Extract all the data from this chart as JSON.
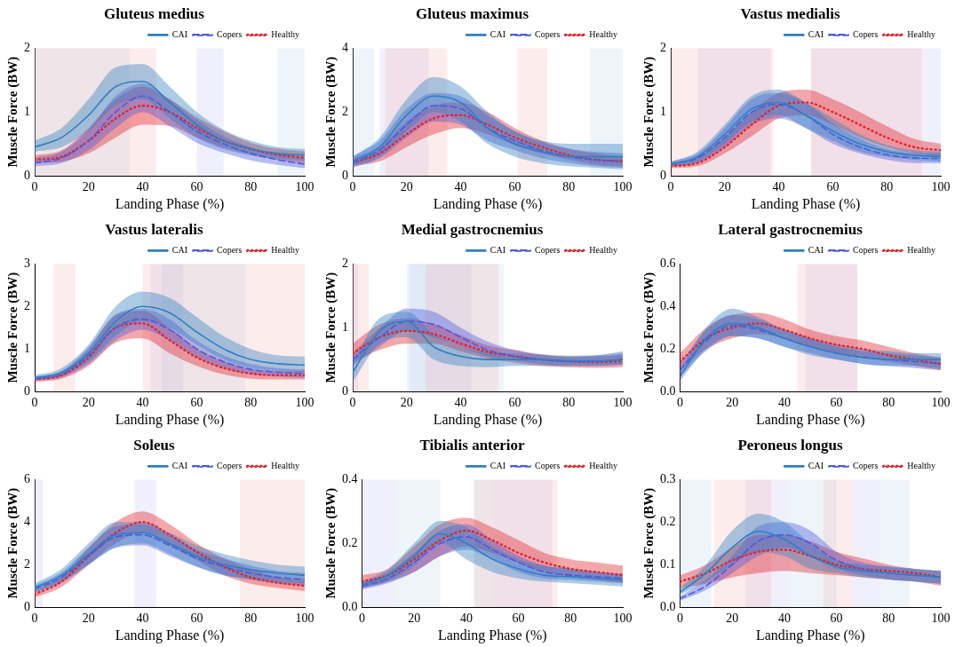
{
  "chart_data": [
    {
      "type": "line",
      "title": "Gluteus medius",
      "xlabel": "Landing Phase (%)",
      "ylabel": "Muscle Force (BW)",
      "x": [
        0,
        10,
        20,
        30,
        40,
        50,
        60,
        70,
        80,
        90,
        100
      ],
      "xlim": [
        0,
        100
      ],
      "xticks": [
        0,
        20,
        40,
        60,
        80,
        100
      ],
      "ylim": [
        0,
        2
      ],
      "yticks": [
        0,
        1,
        2
      ],
      "legend": "top right",
      "marker": "none",
      "grid": false,
      "series": [
        {
          "name": "CAI",
          "color": "#2f7fc1",
          "line_style": "solid",
          "values": [
            0.45,
            0.6,
            0.95,
            1.4,
            1.48,
            1.15,
            0.8,
            0.55,
            0.42,
            0.35,
            0.32
          ],
          "lower": [
            0.38,
            0.45,
            0.7,
            1.1,
            1.2,
            0.9,
            0.6,
            0.42,
            0.32,
            0.27,
            0.25
          ],
          "upper": [
            0.55,
            0.75,
            1.2,
            1.7,
            1.75,
            1.4,
            1.0,
            0.72,
            0.55,
            0.45,
            0.42
          ]
        },
        {
          "name": "Copers",
          "color": "#4b5bdc",
          "line_style": "dashed",
          "values": [
            0.2,
            0.28,
            0.55,
            1.0,
            1.25,
            1.0,
            0.7,
            0.5,
            0.35,
            0.25,
            0.18
          ],
          "lower": [
            0.15,
            0.2,
            0.4,
            0.75,
            1.0,
            0.78,
            0.52,
            0.36,
            0.24,
            0.17,
            0.12
          ],
          "upper": [
            0.28,
            0.38,
            0.72,
            1.25,
            1.45,
            1.2,
            0.88,
            0.62,
            0.45,
            0.34,
            0.28
          ]
        },
        {
          "name": "Healthy",
          "color": "#e3242b",
          "line_style": "dotted",
          "values": [
            0.25,
            0.3,
            0.55,
            0.9,
            1.1,
            1.0,
            0.75,
            0.55,
            0.42,
            0.33,
            0.28
          ],
          "lower": [
            0.2,
            0.22,
            0.35,
            0.6,
            0.8,
            0.78,
            0.6,
            0.44,
            0.33,
            0.25,
            0.2
          ],
          "upper": [
            0.32,
            0.4,
            0.75,
            1.2,
            1.4,
            1.2,
            0.92,
            0.7,
            0.52,
            0.42,
            0.38
          ]
        }
      ],
      "bands": [
        {
          "axis": "x",
          "from": 0,
          "to": 35,
          "color": "#a8cbe8"
        },
        {
          "axis": "x",
          "from": 90,
          "to": 100,
          "color": "#a8cbe8"
        },
        {
          "axis": "x",
          "from": 60,
          "to": 70,
          "color": "#b4b4f2"
        },
        {
          "axis": "x",
          "from": 0,
          "to": 45,
          "color": "#f4a0a0"
        }
      ]
    },
    {
      "type": "line",
      "title": "Gluteus maximus",
      "xlabel": "Landing Phase (%)",
      "ylabel": "Muscle Force (BW)",
      "x": [
        0,
        10,
        20,
        30,
        40,
        50,
        60,
        70,
        80,
        90,
        100
      ],
      "xlim": [
        0,
        100
      ],
      "xticks": [
        0,
        20,
        40,
        60,
        80,
        100
      ],
      "ylim": [
        0,
        4
      ],
      "yticks": [
        0,
        2,
        4
      ],
      "legend": "top right",
      "marker": "none",
      "grid": false,
      "series": [
        {
          "name": "CAI",
          "color": "#2f7fc1",
          "line_style": "solid",
          "values": [
            0.45,
            0.9,
            1.9,
            2.5,
            2.3,
            1.5,
            1.0,
            0.75,
            0.6,
            0.6,
            0.6
          ],
          "lower": [
            0.3,
            0.6,
            1.4,
            2.0,
            1.7,
            1.0,
            0.6,
            0.4,
            0.3,
            0.25,
            0.2
          ],
          "upper": [
            0.6,
            1.2,
            2.4,
            3.1,
            2.8,
            2.0,
            1.4,
            1.1,
            1.0,
            1.0,
            1.0
          ]
        },
        {
          "name": "Copers",
          "color": "#4b5bdc",
          "line_style": "dashed",
          "values": [
            0.4,
            0.8,
            1.6,
            2.2,
            2.1,
            1.5,
            1.1,
            0.8,
            0.6,
            0.5,
            0.45
          ],
          "lower": [
            0.25,
            0.55,
            1.2,
            1.7,
            1.6,
            1.1,
            0.8,
            0.55,
            0.4,
            0.3,
            0.25
          ],
          "upper": [
            0.6,
            1.1,
            2.1,
            2.6,
            2.5,
            1.9,
            1.4,
            1.05,
            0.85,
            0.75,
            0.7
          ]
        },
        {
          "name": "Healthy",
          "color": "#e3242b",
          "line_style": "dotted",
          "values": [
            0.4,
            0.7,
            1.3,
            1.8,
            1.9,
            1.6,
            1.2,
            0.9,
            0.65,
            0.5,
            0.45
          ],
          "lower": [
            0.3,
            0.45,
            0.9,
            1.3,
            1.5,
            1.3,
            0.95,
            0.7,
            0.5,
            0.35,
            0.3
          ],
          "upper": [
            0.55,
            0.9,
            1.7,
            2.2,
            2.3,
            2.0,
            1.5,
            1.1,
            0.85,
            0.7,
            0.6
          ]
        }
      ],
      "bands": [
        {
          "axis": "x",
          "from": 0,
          "to": 8,
          "color": "#a8cbe8"
        },
        {
          "axis": "x",
          "from": 88,
          "to": 100,
          "color": "#a8cbe8"
        },
        {
          "axis": "x",
          "from": 10,
          "to": 28,
          "color": "#b4b4f2"
        },
        {
          "axis": "x",
          "from": 12,
          "to": 35,
          "color": "#f4a0a0"
        },
        {
          "axis": "x",
          "from": 61,
          "to": 72,
          "color": "#f4a0a0"
        }
      ]
    },
    {
      "type": "line",
      "title": "Vastus medialis",
      "xlabel": "Landing Phase (%)",
      "ylabel": "Muscle Force (BW)",
      "x": [
        0,
        10,
        20,
        30,
        40,
        50,
        60,
        70,
        80,
        90,
        100
      ],
      "xlim": [
        0,
        100
      ],
      "xticks": [
        0,
        20,
        40,
        60,
        80,
        100
      ],
      "ylim": [
        0,
        2
      ],
      "yticks": [
        0,
        1,
        2
      ],
      "legend": "top right",
      "marker": "none",
      "grid": false,
      "series": [
        {
          "name": "CAI",
          "color": "#2f7fc1",
          "line_style": "solid",
          "values": [
            0.18,
            0.3,
            0.65,
            1.05,
            1.15,
            0.95,
            0.7,
            0.5,
            0.38,
            0.32,
            0.3
          ],
          "lower": [
            0.15,
            0.22,
            0.5,
            0.85,
            0.95,
            0.75,
            0.55,
            0.38,
            0.3,
            0.25,
            0.22
          ],
          "upper": [
            0.22,
            0.38,
            0.8,
            1.25,
            1.35,
            1.15,
            0.9,
            0.65,
            0.48,
            0.4,
            0.38
          ]
        },
        {
          "name": "Copers",
          "color": "#4b5bdc",
          "line_style": "dashed",
          "values": [
            0.18,
            0.28,
            0.6,
            1.0,
            1.12,
            0.95,
            0.65,
            0.45,
            0.33,
            0.28,
            0.27
          ],
          "lower": [
            0.14,
            0.2,
            0.45,
            0.8,
            0.9,
            0.75,
            0.5,
            0.35,
            0.25,
            0.2,
            0.2
          ],
          "upper": [
            0.22,
            0.35,
            0.75,
            1.2,
            1.3,
            1.15,
            0.82,
            0.58,
            0.42,
            0.36,
            0.35
          ]
        },
        {
          "name": "Healthy",
          "color": "#e3242b",
          "line_style": "dotted",
          "values": [
            0.15,
            0.2,
            0.45,
            0.8,
            1.1,
            1.15,
            1.0,
            0.8,
            0.6,
            0.45,
            0.4
          ],
          "lower": [
            0.12,
            0.15,
            0.35,
            0.62,
            0.9,
            0.95,
            0.8,
            0.6,
            0.45,
            0.35,
            0.3
          ],
          "upper": [
            0.2,
            0.28,
            0.6,
            1.0,
            1.3,
            1.35,
            1.2,
            1.0,
            0.78,
            0.58,
            0.5
          ]
        }
      ],
      "bands": [
        {
          "axis": "x",
          "from": 10,
          "to": 37,
          "color": "#b4b4f2"
        },
        {
          "axis": "x",
          "from": 52,
          "to": 100,
          "color": "#b4b4f2"
        },
        {
          "axis": "x",
          "from": 0,
          "to": 38,
          "color": "#f4a0a0"
        },
        {
          "axis": "x",
          "from": 52,
          "to": 93,
          "color": "#f4a0a0"
        }
      ]
    },
    {
      "type": "line",
      "title": "Vastus lateralis",
      "xlabel": "Landing Phase (%)",
      "ylabel": "Muscle Force (BW)",
      "x": [
        0,
        10,
        20,
        30,
        40,
        50,
        60,
        70,
        80,
        90,
        100
      ],
      "xlim": [
        0,
        100
      ],
      "xticks": [
        0,
        20,
        40,
        60,
        80,
        100
      ],
      "ylim": [
        0,
        3
      ],
      "yticks": [
        0,
        1,
        2,
        3
      ],
      "legend": "top right",
      "marker": "none",
      "grid": false,
      "series": [
        {
          "name": "CAI",
          "color": "#2f7fc1",
          "line_style": "solid",
          "values": [
            0.32,
            0.45,
            0.9,
            1.65,
            2.0,
            1.85,
            1.4,
            1.0,
            0.75,
            0.65,
            0.62
          ],
          "lower": [
            0.27,
            0.38,
            0.7,
            1.3,
            1.65,
            1.5,
            1.1,
            0.75,
            0.55,
            0.48,
            0.45
          ],
          "upper": [
            0.38,
            0.55,
            1.1,
            2.0,
            2.35,
            2.2,
            1.75,
            1.3,
            1.0,
            0.85,
            0.82
          ]
        },
        {
          "name": "Copers",
          "color": "#4b5bdc",
          "line_style": "dashed",
          "values": [
            0.3,
            0.4,
            0.85,
            1.5,
            1.7,
            1.45,
            1.0,
            0.7,
            0.52,
            0.45,
            0.42
          ],
          "lower": [
            0.25,
            0.33,
            0.65,
            1.2,
            1.45,
            1.2,
            0.8,
            0.55,
            0.4,
            0.35,
            0.32
          ],
          "upper": [
            0.35,
            0.48,
            1.05,
            1.8,
            1.95,
            1.7,
            1.2,
            0.85,
            0.65,
            0.55,
            0.52
          ]
        },
        {
          "name": "Healthy",
          "color": "#e3242b",
          "line_style": "dotted",
          "values": [
            0.28,
            0.38,
            0.8,
            1.5,
            1.6,
            1.2,
            0.8,
            0.55,
            0.42,
            0.38,
            0.38
          ],
          "lower": [
            0.22,
            0.3,
            0.6,
            1.15,
            1.25,
            0.9,
            0.6,
            0.4,
            0.3,
            0.28,
            0.28
          ],
          "upper": [
            0.33,
            0.45,
            1.0,
            1.8,
            1.9,
            1.5,
            1.0,
            0.7,
            0.52,
            0.48,
            0.48
          ]
        }
      ],
      "bands": [
        {
          "axis": "x",
          "from": 43,
          "to": 55,
          "color": "#b4b4f2"
        },
        {
          "axis": "x",
          "from": 47,
          "to": 78,
          "color": "#a8cbe8"
        },
        {
          "axis": "x",
          "from": 7,
          "to": 15,
          "color": "#f4a0a0"
        },
        {
          "axis": "x",
          "from": 40,
          "to": 100,
          "color": "#f4a0a0"
        }
      ]
    },
    {
      "type": "line",
      "title": "Medial gastrocnemius",
      "xlabel": "Landing Phase (%)",
      "ylabel": "Muscle Force (BW)",
      "x": [
        0,
        10,
        20,
        30,
        40,
        50,
        60,
        70,
        80,
        90,
        100
      ],
      "xlim": [
        0,
        100
      ],
      "xticks": [
        0,
        20,
        40,
        60,
        80,
        100
      ],
      "ylim": [
        0,
        2
      ],
      "yticks": [
        0,
        1,
        2
      ],
      "legend": "top right",
      "marker": "none",
      "grid": false,
      "series": [
        {
          "name": "CAI",
          "color": "#2f7fc1",
          "line_style": "solid",
          "values": [
            0.3,
            0.95,
            1.1,
            0.7,
            0.55,
            0.5,
            0.5,
            0.5,
            0.48,
            0.48,
            0.5
          ],
          "lower": [
            0.15,
            0.75,
            0.85,
            0.5,
            0.4,
            0.38,
            0.4,
            0.4,
            0.4,
            0.4,
            0.42
          ],
          "upper": [
            0.45,
            1.15,
            1.25,
            0.9,
            0.7,
            0.62,
            0.6,
            0.58,
            0.56,
            0.57,
            0.6
          ]
        },
        {
          "name": "Copers",
          "color": "#4b5bdc",
          "line_style": "dashed",
          "values": [
            0.5,
            0.85,
            1.1,
            1.05,
            0.85,
            0.65,
            0.55,
            0.5,
            0.47,
            0.47,
            0.5
          ],
          "lower": [
            0.4,
            0.7,
            0.95,
            0.85,
            0.7,
            0.55,
            0.48,
            0.43,
            0.4,
            0.4,
            0.42
          ],
          "upper": [
            0.6,
            1.0,
            1.3,
            1.25,
            1.0,
            0.78,
            0.65,
            0.57,
            0.54,
            0.56,
            0.63
          ]
        },
        {
          "name": "Healthy",
          "color": "#e3242b",
          "line_style": "dotted",
          "values": [
            0.6,
            0.85,
            0.95,
            0.9,
            0.75,
            0.62,
            0.55,
            0.5,
            0.47,
            0.46,
            0.47
          ],
          "lower": [
            0.45,
            0.65,
            0.75,
            0.75,
            0.63,
            0.52,
            0.45,
            0.4,
            0.38,
            0.37,
            0.38
          ],
          "upper": [
            0.75,
            1.05,
            1.15,
            1.05,
            0.88,
            0.72,
            0.65,
            0.58,
            0.55,
            0.55,
            0.57
          ]
        }
      ],
      "bands": [
        {
          "axis": "x",
          "from": 0,
          "to": 2,
          "color": "#b4b4f2"
        },
        {
          "axis": "x",
          "from": 21,
          "to": 44,
          "color": "#b4b4f2"
        },
        {
          "axis": "x",
          "from": 20,
          "to": 56,
          "color": "#a8cbe8"
        },
        {
          "axis": "x",
          "from": 0,
          "to": 6,
          "color": "#f4a0a0"
        },
        {
          "axis": "x",
          "from": 27,
          "to": 54,
          "color": "#f4a0a0"
        }
      ]
    },
    {
      "type": "line",
      "title": "Lateral gastrocnemius",
      "xlabel": "Landing Phase (%)",
      "ylabel": "Muscle Force (BW)",
      "x": [
        0,
        10,
        20,
        30,
        40,
        50,
        60,
        70,
        80,
        90,
        100
      ],
      "xlim": [
        0,
        100
      ],
      "xticks": [
        0,
        20,
        40,
        60,
        80,
        100
      ],
      "ylim": [
        0,
        0.6
      ],
      "yticks": [
        {
          "value": 0,
          "label": "0.0"
        },
        {
          "value": 0.2,
          "label": "0.2"
        },
        {
          "value": 0.4,
          "label": "0.4"
        },
        {
          "value": 0.6,
          "label": "0.6"
        }
      ],
      "legend": "top right",
      "marker": "none",
      "grid": false,
      "series": [
        {
          "name": "CAI",
          "color": "#2f7fc1",
          "line_style": "solid",
          "values": [
            0.07,
            0.25,
            0.32,
            0.3,
            0.25,
            0.21,
            0.18,
            0.16,
            0.15,
            0.15,
            0.15
          ],
          "lower": [
            0.05,
            0.2,
            0.26,
            0.25,
            0.21,
            0.17,
            0.15,
            0.13,
            0.12,
            0.12,
            0.11
          ],
          "upper": [
            0.1,
            0.3,
            0.39,
            0.35,
            0.29,
            0.25,
            0.22,
            0.2,
            0.19,
            0.18,
            0.18
          ]
        },
        {
          "name": "Copers",
          "color": "#4b5bdc",
          "line_style": "dashed",
          "values": [
            0.1,
            0.24,
            0.31,
            0.29,
            0.25,
            0.21,
            0.18,
            0.16,
            0.15,
            0.14,
            0.13
          ],
          "lower": [
            0.07,
            0.19,
            0.26,
            0.25,
            0.21,
            0.18,
            0.15,
            0.13,
            0.12,
            0.11,
            0.1
          ],
          "upper": [
            0.13,
            0.29,
            0.36,
            0.34,
            0.29,
            0.25,
            0.21,
            0.19,
            0.18,
            0.17,
            0.16
          ]
        },
        {
          "name": "Healthy",
          "color": "#e3242b",
          "line_style": "dotted",
          "values": [
            0.14,
            0.25,
            0.3,
            0.32,
            0.29,
            0.25,
            0.22,
            0.2,
            0.17,
            0.15,
            0.13
          ],
          "lower": [
            0.1,
            0.2,
            0.25,
            0.27,
            0.25,
            0.21,
            0.18,
            0.16,
            0.14,
            0.12,
            0.1
          ],
          "upper": [
            0.18,
            0.3,
            0.36,
            0.37,
            0.34,
            0.29,
            0.26,
            0.24,
            0.21,
            0.18,
            0.16
          ]
        }
      ],
      "bands": [
        {
          "axis": "x",
          "from": 48,
          "to": 68,
          "color": "#b4b4f2"
        },
        {
          "axis": "x",
          "from": 0,
          "to": 1,
          "color": "#f4a0a0"
        },
        {
          "axis": "x",
          "from": 45,
          "to": 68,
          "color": "#f4a0a0"
        }
      ]
    },
    {
      "type": "line",
      "title": "Soleus",
      "xlabel": "Landing Phase (%)",
      "ylabel": "Muscle Force (BW)",
      "x": [
        0,
        10,
        20,
        30,
        40,
        50,
        60,
        70,
        80,
        90,
        100
      ],
      "xlim": [
        0,
        100
      ],
      "xticks": [
        0,
        20,
        40,
        60,
        80,
        100
      ],
      "ylim": [
        0,
        6
      ],
      "yticks": [
        0,
        2,
        4,
        6
      ],
      "legend": "top right",
      "marker": "none",
      "grid": false,
      "series": [
        {
          "name": "CAI",
          "color": "#2f7fc1",
          "line_style": "solid",
          "values": [
            0.9,
            1.5,
            2.5,
            3.4,
            3.5,
            3.0,
            2.4,
            2.0,
            1.75,
            1.6,
            1.5
          ],
          "lower": [
            0.7,
            1.2,
            2.0,
            2.8,
            3.0,
            2.5,
            1.9,
            1.5,
            1.3,
            1.2,
            1.1
          ],
          "upper": [
            1.1,
            1.8,
            3.0,
            4.0,
            4.0,
            3.5,
            2.9,
            2.5,
            2.2,
            2.0,
            1.9
          ]
        },
        {
          "name": "Copers",
          "color": "#4b5bdc",
          "line_style": "dashed",
          "values": [
            0.85,
            1.4,
            2.4,
            3.3,
            3.4,
            2.9,
            2.3,
            1.9,
            1.6,
            1.4,
            1.3
          ],
          "lower": [
            0.7,
            1.15,
            2.0,
            2.8,
            2.9,
            2.4,
            1.9,
            1.5,
            1.3,
            1.1,
            1.0
          ],
          "upper": [
            1.0,
            1.65,
            2.8,
            3.8,
            3.9,
            3.4,
            2.7,
            2.3,
            1.95,
            1.7,
            1.6
          ]
        },
        {
          "name": "Healthy",
          "color": "#e3242b",
          "line_style": "dotted",
          "values": [
            0.6,
            1.2,
            2.4,
            3.5,
            4.0,
            3.4,
            2.6,
            1.9,
            1.4,
            1.15,
            1.0
          ],
          "lower": [
            0.45,
            0.95,
            2.0,
            3.0,
            3.5,
            2.9,
            2.2,
            1.5,
            1.1,
            0.9,
            0.75
          ],
          "upper": [
            0.75,
            1.45,
            2.8,
            4.0,
            4.5,
            3.9,
            3.0,
            2.3,
            1.8,
            1.4,
            1.25
          ]
        }
      ],
      "bands": [
        {
          "axis": "x",
          "from": 0,
          "to": 3,
          "color": "#b4b4f2"
        },
        {
          "axis": "x",
          "from": 37,
          "to": 45,
          "color": "#b4b4f2"
        },
        {
          "axis": "x",
          "from": 76,
          "to": 100,
          "color": "#f4a0a0"
        }
      ]
    },
    {
      "type": "line",
      "title": "Tibialis anterior",
      "xlabel": "Landing Phase (%)",
      "ylabel": "Muscle Force (BW)",
      "x": [
        0,
        10,
        20,
        30,
        40,
        50,
        60,
        70,
        80,
        90,
        100
      ],
      "xlim": [
        0,
        100
      ],
      "xticks": [
        0,
        20,
        40,
        60,
        80,
        100
      ],
      "ylim": [
        0,
        0.4
      ],
      "yticks": [
        {
          "value": 0,
          "label": "0.0"
        },
        {
          "value": 0.2,
          "label": "0.2"
        },
        {
          "value": 0.4,
          "label": "0.4"
        }
      ],
      "legend": "top right",
      "marker": "none",
      "grid": false,
      "series": [
        {
          "name": "CAI",
          "color": "#2f7fc1",
          "line_style": "solid",
          "values": [
            0.07,
            0.1,
            0.16,
            0.23,
            0.2,
            0.15,
            0.12,
            0.1,
            0.095,
            0.09,
            0.085
          ],
          "lower": [
            0.06,
            0.08,
            0.13,
            0.2,
            0.15,
            0.11,
            0.09,
            0.08,
            0.075,
            0.07,
            0.065
          ],
          "upper": [
            0.08,
            0.12,
            0.2,
            0.27,
            0.25,
            0.19,
            0.15,
            0.13,
            0.12,
            0.11,
            0.1
          ]
        },
        {
          "name": "Copers",
          "color": "#4b5bdc",
          "line_style": "dashed",
          "values": [
            0.065,
            0.09,
            0.14,
            0.2,
            0.22,
            0.18,
            0.14,
            0.11,
            0.1,
            0.095,
            0.09
          ],
          "lower": [
            0.055,
            0.075,
            0.11,
            0.16,
            0.18,
            0.15,
            0.11,
            0.09,
            0.085,
            0.08,
            0.075
          ],
          "upper": [
            0.075,
            0.11,
            0.17,
            0.24,
            0.26,
            0.21,
            0.16,
            0.13,
            0.12,
            0.11,
            0.105
          ]
        },
        {
          "name": "Healthy",
          "color": "#e3242b",
          "line_style": "dotted",
          "values": [
            0.08,
            0.1,
            0.15,
            0.21,
            0.24,
            0.21,
            0.17,
            0.14,
            0.12,
            0.11,
            0.1
          ],
          "lower": [
            0.06,
            0.08,
            0.11,
            0.16,
            0.19,
            0.17,
            0.14,
            0.11,
            0.095,
            0.085,
            0.075
          ],
          "upper": [
            0.1,
            0.12,
            0.19,
            0.26,
            0.28,
            0.25,
            0.21,
            0.17,
            0.15,
            0.14,
            0.13
          ]
        }
      ],
      "bands": [
        {
          "axis": "x",
          "from": 0,
          "to": 12,
          "color": "#b4b4f2"
        },
        {
          "axis": "x",
          "from": 51,
          "to": 73,
          "color": "#b4b4f2"
        },
        {
          "axis": "x",
          "from": 12,
          "to": 30,
          "color": "#a8cbe8"
        },
        {
          "axis": "x",
          "from": 43,
          "to": 51,
          "color": "#a8cbe8"
        },
        {
          "axis": "x",
          "from": 43,
          "to": 75,
          "color": "#f4a0a0"
        }
      ]
    },
    {
      "type": "line",
      "title": "Peroneus longus",
      "xlabel": "Landing Phase (%)",
      "ylabel": "Muscle Force (BW)",
      "x": [
        0,
        10,
        20,
        30,
        40,
        50,
        60,
        70,
        80,
        90,
        100
      ],
      "xlim": [
        0,
        100
      ],
      "xticks": [
        0,
        20,
        40,
        60,
        80,
        100
      ],
      "ylim": [
        0,
        0.3
      ],
      "yticks": [
        {
          "value": 0,
          "label": "0.0"
        },
        {
          "value": 0.1,
          "label": "0.1"
        },
        {
          "value": 0.2,
          "label": "0.2"
        },
        {
          "value": 0.3,
          "label": "0.3"
        }
      ],
      "legend": "top right",
      "marker": "none",
      "grid": false,
      "series": [
        {
          "name": "CAI",
          "color": "#2f7fc1",
          "line_style": "solid",
          "values": [
            0.035,
            0.08,
            0.14,
            0.178,
            0.16,
            0.12,
            0.095,
            0.085,
            0.08,
            0.075,
            0.07
          ],
          "lower": [
            0.03,
            0.06,
            0.1,
            0.13,
            0.12,
            0.09,
            0.08,
            0.07,
            0.065,
            0.06,
            0.055
          ],
          "upper": [
            0.045,
            0.1,
            0.18,
            0.22,
            0.2,
            0.15,
            0.11,
            0.1,
            0.095,
            0.09,
            0.085
          ]
        },
        {
          "name": "Copers",
          "color": "#4b5bdc",
          "line_style": "dashed",
          "values": [
            0.02,
            0.05,
            0.1,
            0.155,
            0.17,
            0.15,
            0.11,
            0.09,
            0.08,
            0.075,
            0.07
          ],
          "lower": [
            0.015,
            0.04,
            0.08,
            0.12,
            0.14,
            0.12,
            0.09,
            0.075,
            0.065,
            0.06,
            0.055
          ],
          "upper": [
            0.025,
            0.065,
            0.12,
            0.19,
            0.2,
            0.18,
            0.13,
            0.105,
            0.095,
            0.09,
            0.085
          ]
        },
        {
          "name": "Healthy",
          "color": "#e3242b",
          "line_style": "dotted",
          "values": [
            0.06,
            0.08,
            0.11,
            0.13,
            0.135,
            0.12,
            0.1,
            0.09,
            0.085,
            0.08,
            0.07
          ],
          "lower": [
            0.045,
            0.055,
            0.07,
            0.08,
            0.085,
            0.08,
            0.075,
            0.07,
            0.065,
            0.06,
            0.05
          ],
          "upper": [
            0.075,
            0.1,
            0.14,
            0.17,
            0.17,
            0.155,
            0.13,
            0.115,
            0.1,
            0.09,
            0.085
          ]
        }
      ],
      "bands": [
        {
          "axis": "x",
          "from": 25,
          "to": 42,
          "color": "#b4b4f2"
        },
        {
          "axis": "x",
          "from": 66,
          "to": 77,
          "color": "#b4b4f2"
        },
        {
          "axis": "x",
          "from": 0,
          "to": 12,
          "color": "#a8cbe8"
        },
        {
          "axis": "x",
          "from": 42,
          "to": 60,
          "color": "#a8cbe8"
        },
        {
          "axis": "x",
          "from": 77,
          "to": 88,
          "color": "#a8cbe8"
        },
        {
          "axis": "x",
          "from": 13,
          "to": 35,
          "color": "#f4a0a0"
        },
        {
          "axis": "x",
          "from": 55,
          "to": 66,
          "color": "#f4a0a0"
        }
      ]
    }
  ]
}
